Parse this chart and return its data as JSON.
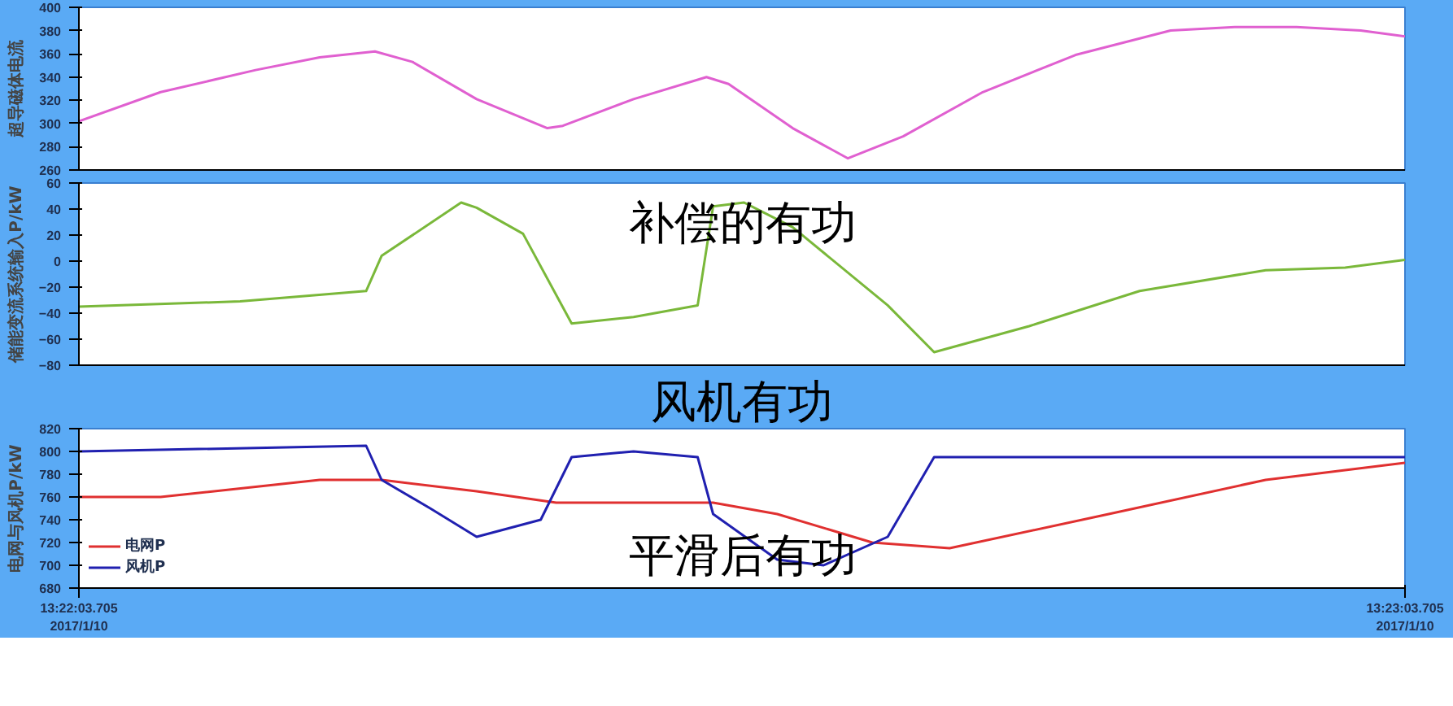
{
  "chart_data": [
    {
      "type": "line",
      "ylabel": "超导磁体电流",
      "xlim": [
        "2017-01-10T13:22:03.705",
        "2017-01-10T13:23:03.705"
      ],
      "ylim": [
        260,
        400
      ],
      "yticks": [
        260,
        280,
        300,
        320,
        340,
        360,
        380,
        400
      ],
      "tick_labels": "y",
      "grid": false,
      "legend": false,
      "series": [
        {
          "color": "#e060d0",
          "x": [
            "2017-01-10T13:22:03.705",
            "2017-01-10T13:22:07.4",
            "2017-01-10T13:22:11.7",
            "2017-01-10T13:22:14.6",
            "2017-01-10T13:22:17.1",
            "2017-01-10T13:22:18.8",
            "2017-01-10T13:22:21.7",
            "2017-01-10T13:22:24.9",
            "2017-01-10T13:22:25.6",
            "2017-01-10T13:22:28.8",
            "2017-01-10T13:22:32.1",
            "2017-01-10T13:22:33.1",
            "2017-01-10T13:22:36.0",
            "2017-01-10T13:22:38.5",
            "2017-01-10T13:22:41.0",
            "2017-01-10T13:22:44.6",
            "2017-01-10T13:22:48.8",
            "2017-01-10T13:22:53.1",
            "2017-01-10T13:22:56.0",
            "2017-01-10T13:22:58.8",
            "2017-01-10T13:23:01.7",
            "2017-01-10T13:23:03.705"
          ],
          "values": [
            302,
            327,
            346,
            357,
            362,
            353,
            321,
            296,
            298,
            321,
            340,
            334,
            296,
            270,
            289,
            327,
            359,
            380,
            383,
            383,
            380,
            375
          ]
        }
      ]
    },
    {
      "type": "line",
      "ylabel": "储能变流系统输入P/kW",
      "xlim": [
        "2017-01-10T13:22:03.705",
        "2017-01-10T13:23:03.705"
      ],
      "ylim": [
        -80,
        60
      ],
      "yticks": [
        -80,
        -60,
        -40,
        -20,
        0,
        20,
        40,
        60
      ],
      "tick_labels": "y",
      "grid": false,
      "legend": false,
      "annotations": [
        "补偿的有功"
      ],
      "series": [
        {
          "color": "#7ab83a",
          "x": [
            "2017-01-10T13:22:03.705",
            "2017-01-10T13:22:11.0",
            "2017-01-10T13:22:16.7",
            "2017-01-10T13:22:17.4",
            "2017-01-10T13:22:21.0",
            "2017-01-10T13:22:21.7",
            "2017-01-10T13:22:23.8",
            "2017-01-10T13:22:26.0",
            "2017-01-10T13:22:28.8",
            "2017-01-10T13:22:31.7",
            "2017-01-10T13:22:32.4",
            "2017-01-10T13:22:33.8",
            "2017-01-10T13:22:36.0",
            "2017-01-10T13:22:40.3",
            "2017-01-10T13:22:42.4",
            "2017-01-10T13:22:46.7",
            "2017-01-10T13:22:51.7",
            "2017-01-10T13:22:57.4",
            "2017-01-10T13:23:01.0",
            "2017-01-10T13:23:03.705"
          ],
          "values": [
            -35,
            -31,
            -23,
            4,
            45,
            41,
            21,
            -48,
            -43,
            -34,
            42,
            45,
            26,
            -34,
            -70,
            -50,
            -23,
            -7,
            -5,
            1
          ]
        }
      ]
    },
    {
      "type": "line",
      "ylabel": "电网与风机P/kW",
      "xlim": [
        "2017-01-10T13:22:03.705",
        "2017-01-10T13:23:03.705"
      ],
      "ylim": [
        680,
        820
      ],
      "yticks": [
        680,
        700,
        720,
        740,
        760,
        780,
        800,
        820
      ],
      "xticks": [
        {
          "value": "2017-01-10T13:22:03.705",
          "label": "13:22:03.705\n2017/1/10"
        },
        {
          "value": "2017-01-10T13:23:03.705",
          "label": "13:23:03.705\n2017/1/10"
        }
      ],
      "grid": false,
      "legend": "bottom left",
      "annotations": [
        "风机有功",
        "平滑后有功"
      ],
      "series": [
        {
          "name": "电网P",
          "color": "#e03030",
          "x": [
            "2017-01-10T13:22:03.705",
            "2017-01-10T13:22:07.4",
            "2017-01-10T13:22:14.6",
            "2017-01-10T13:22:17.4",
            "2017-01-10T13:22:21.7",
            "2017-01-10T13:22:25.3",
            "2017-01-10T13:22:32.4",
            "2017-01-10T13:22:35.3",
            "2017-01-10T13:22:39.6",
            "2017-01-10T13:22:43.1",
            "2017-01-10T13:22:50.3",
            "2017-01-10T13:22:57.4",
            "2017-01-10T13:23:03.705"
          ],
          "values": [
            760,
            760,
            775,
            775,
            765,
            755,
            755,
            745,
            720,
            715,
            745,
            775,
            790
          ]
        },
        {
          "name": "风机P",
          "color": "#2020b0",
          "x": [
            "2017-01-10T13:22:03.705",
            "2017-01-10T13:22:16.7",
            "2017-01-10T13:22:17.4",
            "2017-01-10T13:22:19.6",
            "2017-01-10T13:22:21.7",
            "2017-01-10T13:22:24.6",
            "2017-01-10T13:22:26.0",
            "2017-01-10T13:22:28.8",
            "2017-01-10T13:22:31.7",
            "2017-01-10T13:22:32.4",
            "2017-01-10T13:22:35.3",
            "2017-01-10T13:22:37.4",
            "2017-01-10T13:22:40.3",
            "2017-01-10T13:22:42.4",
            "2017-01-10T13:22:46.7",
            "2017-01-10T13:22:53.8",
            "2017-01-10T13:23:03.705"
          ],
          "values": [
            800,
            805,
            775,
            750,
            725,
            740,
            795,
            800,
            795,
            745,
            705,
            700,
            725,
            795,
            795,
            795,
            795
          ]
        }
      ]
    }
  ]
}
